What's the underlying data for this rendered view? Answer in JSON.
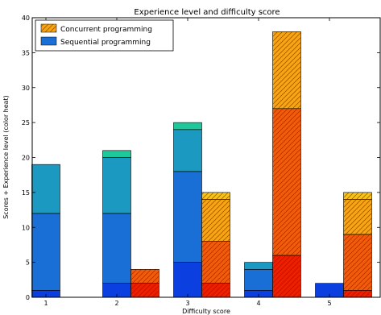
{
  "chart_data": {
    "type": "bar",
    "title": "Experience level and difficulty score",
    "xlabel": "Difficulty score",
    "ylabel": "Scores + Experience level (color heat)",
    "ylim": [
      0,
      40
    ],
    "yticks": [
      0,
      5,
      10,
      15,
      20,
      25,
      30,
      35,
      40
    ],
    "categories": [
      "1",
      "2",
      "3",
      "4",
      "5"
    ],
    "stacked": true,
    "grid": false,
    "legend_position": "top-left",
    "groups": [
      {
        "name": "Sequential programming",
        "hatch": "none",
        "colors": [
          "#0b3fe0",
          "#1a6fd6",
          "#1b99c0",
          "#1ec89a"
        ],
        "values": [
          [
            1,
            11,
            7,
            0
          ],
          [
            2,
            10,
            8,
            1
          ],
          [
            5,
            13,
            6,
            1
          ],
          [
            1,
            3,
            1,
            0
          ],
          [
            2,
            0,
            0,
            0
          ]
        ]
      },
      {
        "name": "Concurrent programming",
        "hatch": "diagonal",
        "colors": [
          "#f01e00",
          "#f45a0c",
          "#f8a414",
          "#f6c21b"
        ],
        "values": [
          [
            0,
            0,
            0,
            0
          ],
          [
            2,
            2,
            0,
            0
          ],
          [
            2,
            6,
            6,
            1
          ],
          [
            6,
            21,
            11,
            0
          ],
          [
            1,
            8,
            5,
            1
          ]
        ]
      }
    ]
  }
}
